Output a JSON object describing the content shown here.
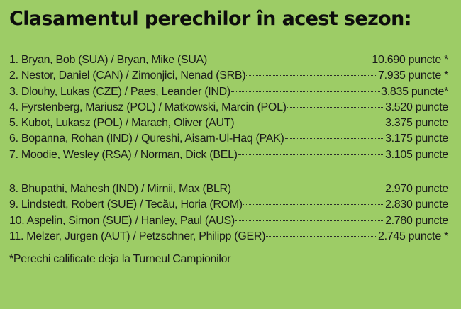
{
  "title": "Clasamentul perechilor în acest sezon:",
  "group1": [
    {
      "name": "1. Bryan, Bob (SUA) / Bryan, Mike (SUA)",
      "points": "10.690 puncte *"
    },
    {
      "name": "2. Nestor, Daniel (CAN) / Zimonjici, Nenad (SRB)",
      "points": "7.935 puncte *"
    },
    {
      "name": "3. Dlouhy, Lukas (CZE) / Paes, Leander (IND)",
      "points": "3.835 puncte*"
    },
    {
      "name": "4. Fyrstenberg, Mariusz (POL) / Matkowski, Marcin (POL)",
      "points": "3.520 puncte"
    },
    {
      "name": "5. Kubot, Lukasz (POL) / Marach, Oliver (AUT)",
      "points": "3.375 puncte"
    },
    {
      "name": "6. Bopanna, Rohan (IND) / Qureshi, Aisam-Ul-Haq (PAK)",
      "points": "3.175 puncte"
    },
    {
      "name": "7. Moodie, Wesley (RSA) / Norman, Dick (BEL)",
      "points": "3.105 puncte"
    }
  ],
  "group2": [
    {
      "name": "8. Bhupathi, Mahesh (IND) / Mirnii, Max (BLR)",
      "points": "2.970 puncte"
    },
    {
      "name": "9. Lindstedt, Robert (SUE) / Tecău, Horia (ROM)",
      "points": "2.830 puncte"
    },
    {
      "name": "10. Aspelin, Simon (SUE) / Hanley, Paul (AUS)",
      "points": "2.780 puncte"
    },
    {
      "name": "11. Melzer, Jurgen (AUT) / Petzschner, Philipp (GER)",
      "points": "2.745 puncte *"
    }
  ],
  "footnote": "*Perechi calificate deja la Turneul Campionilor",
  "colors": {
    "background": "#9dcc66",
    "text": "#1a1a1a"
  }
}
